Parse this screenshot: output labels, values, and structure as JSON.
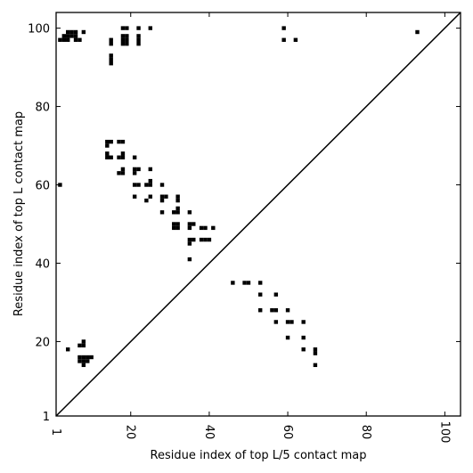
{
  "chart_data": {
    "type": "scatter",
    "marker": "square",
    "xlabel": "Residue index of top L/5 contact map",
    "ylabel": "Residue index of top L contact map",
    "xlim": [
      1,
      104
    ],
    "ylim": [
      1,
      104
    ],
    "x_ticks": [
      1,
      20,
      40,
      60,
      80,
      100
    ],
    "y_ticks": [
      1,
      20,
      40,
      60,
      80,
      100
    ],
    "diagonal": true,
    "colors": {
      "marker": "#000000",
      "line": "#000000",
      "axes": "#000000"
    },
    "series": [
      {
        "region": "upper-left",
        "points": [
          [
            2,
            97
          ],
          [
            3,
            97
          ],
          [
            3,
            98
          ],
          [
            4,
            98
          ],
          [
            4,
            99
          ],
          [
            5,
            99
          ],
          [
            5,
            98
          ],
          [
            6,
            98
          ],
          [
            6,
            97
          ],
          [
            7,
            97
          ],
          [
            6,
            99
          ],
          [
            4,
            97
          ],
          [
            8,
            99
          ],
          [
            15,
            97
          ],
          [
            15,
            96
          ],
          [
            15,
            93
          ],
          [
            15,
            92
          ],
          [
            15,
            91
          ],
          [
            18,
            100
          ],
          [
            19,
            100
          ],
          [
            18,
            98
          ],
          [
            19,
            98
          ],
          [
            18,
            97
          ],
          [
            19,
            97
          ],
          [
            18,
            96
          ],
          [
            19,
            96
          ],
          [
            22,
            100
          ],
          [
            22,
            98
          ],
          [
            22,
            97
          ],
          [
            22,
            96
          ],
          [
            25,
            100
          ],
          [
            59,
            100
          ],
          [
            59,
            97
          ],
          [
            62,
            97
          ],
          [
            93,
            99
          ],
          [
            2,
            60
          ],
          [
            14,
            71
          ],
          [
            15,
            71
          ],
          [
            14,
            70
          ],
          [
            14,
            68
          ],
          [
            15,
            67
          ],
          [
            14,
            67
          ],
          [
            17,
            71
          ],
          [
            18,
            71
          ],
          [
            17,
            67
          ],
          [
            18,
            68
          ],
          [
            18,
            67
          ],
          [
            17,
            63
          ],
          [
            18,
            63
          ],
          [
            18,
            64
          ],
          [
            21,
            67
          ],
          [
            21,
            64
          ],
          [
            22,
            64
          ],
          [
            21,
            63
          ],
          [
            25,
            64
          ],
          [
            25,
            61
          ],
          [
            25,
            60
          ],
          [
            24,
            60
          ],
          [
            22,
            60
          ],
          [
            21,
            60
          ],
          [
            21,
            57
          ],
          [
            24,
            56
          ],
          [
            25,
            57
          ],
          [
            28,
            60
          ],
          [
            28,
            57
          ],
          [
            29,
            57
          ],
          [
            28,
            56
          ],
          [
            28,
            53
          ],
          [
            32,
            57
          ],
          [
            32,
            56
          ],
          [
            32,
            54
          ],
          [
            31,
            53
          ],
          [
            32,
            53
          ],
          [
            31,
            50
          ],
          [
            32,
            50
          ],
          [
            31,
            49
          ],
          [
            32,
            49
          ],
          [
            35,
            53
          ],
          [
            35,
            50
          ],
          [
            36,
            50
          ],
          [
            35,
            49
          ],
          [
            35,
            46
          ],
          [
            36,
            46
          ],
          [
            35,
            45
          ],
          [
            35,
            41
          ],
          [
            38,
            49
          ],
          [
            39,
            49
          ],
          [
            38,
            46
          ],
          [
            39,
            46
          ],
          [
            40,
            46
          ],
          [
            41,
            49
          ]
        ]
      },
      {
        "region": "lower-right",
        "points": [
          [
            4,
            18
          ],
          [
            7,
            19
          ],
          [
            8,
            20
          ],
          [
            8,
            19
          ],
          [
            7,
            16
          ],
          [
            8,
            16
          ],
          [
            9,
            16
          ],
          [
            10,
            16
          ],
          [
            7,
            15
          ],
          [
            8,
            15
          ],
          [
            9,
            15
          ],
          [
            8,
            14
          ],
          [
            46,
            35
          ],
          [
            49,
            35
          ],
          [
            50,
            35
          ],
          [
            53,
            35
          ],
          [
            53,
            32
          ],
          [
            57,
            32
          ],
          [
            53,
            28
          ],
          [
            56,
            28
          ],
          [
            57,
            28
          ],
          [
            60,
            28
          ],
          [
            57,
            25
          ],
          [
            60,
            25
          ],
          [
            61,
            25
          ],
          [
            64,
            25
          ],
          [
            60,
            21
          ],
          [
            64,
            21
          ],
          [
            64,
            18
          ],
          [
            67,
            18
          ],
          [
            67,
            17
          ],
          [
            67,
            14
          ]
        ]
      }
    ]
  }
}
